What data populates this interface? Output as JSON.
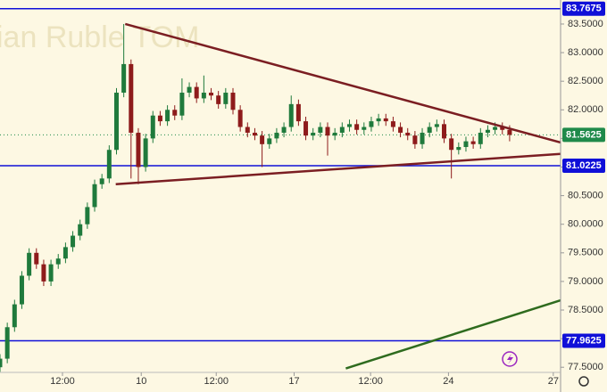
{
  "chart_data": {
    "type": "candlestick",
    "title": "ian Ruble TOM",
    "x": [
      0,
      1,
      2,
      3,
      4,
      5,
      6,
      7,
      8,
      9,
      10,
      11,
      12,
      13,
      14,
      15,
      16,
      17,
      18,
      19,
      20,
      21,
      22,
      23,
      24,
      25,
      26,
      27,
      28,
      29,
      30,
      31,
      32,
      33,
      34,
      35,
      36,
      37,
      38,
      39,
      40,
      41,
      42,
      43,
      44,
      45,
      46,
      47,
      48,
      49,
      50,
      51,
      52,
      53,
      54,
      55,
      56,
      57,
      58,
      59,
      60,
      61,
      62,
      63,
      64,
      65,
      66,
      67,
      68,
      69,
      70
    ],
    "open": [
      77.5,
      77.65,
      78.2,
      78.6,
      79.1,
      79.5,
      79.3,
      79.0,
      79.3,
      79.4,
      79.6,
      79.8,
      80.0,
      80.3,
      80.7,
      80.8,
      81.3,
      82.3,
      82.8,
      81.6,
      81.0,
      81.5,
      81.9,
      81.8,
      82.0,
      81.9,
      82.3,
      82.4,
      82.2,
      82.3,
      82.25,
      82.1,
      82.3,
      82.0,
      81.7,
      81.6,
      81.55,
      81.4,
      81.5,
      81.6,
      81.7,
      82.1,
      81.8,
      81.55,
      81.6,
      81.7,
      81.55,
      81.6,
      81.7,
      81.75,
      81.65,
      81.7,
      81.8,
      81.85,
      81.8,
      81.7,
      81.6,
      81.55,
      81.4,
      81.6,
      81.7,
      81.75,
      81.5,
      81.3,
      81.35,
      81.45,
      81.4,
      81.6,
      81.65,
      81.7,
      81.65
    ],
    "high": [
      77.73,
      78.28,
      78.68,
      79.18,
      79.58,
      79.58,
      79.38,
      79.38,
      79.48,
      79.68,
      79.88,
      80.08,
      80.38,
      80.78,
      80.88,
      81.38,
      82.38,
      83.5,
      82.88,
      81.68,
      81.58,
      81.98,
      81.98,
      82.08,
      82.08,
      82.55,
      82.48,
      82.48,
      82.6,
      82.38,
      82.33,
      82.38,
      82.38,
      82.08,
      81.78,
      81.68,
      81.63,
      81.58,
      81.68,
      81.78,
      82.25,
      82.18,
      81.88,
      81.68,
      81.78,
      81.78,
      81.68,
      81.78,
      81.83,
      81.83,
      81.78,
      81.88,
      81.93,
      81.93,
      81.88,
      81.78,
      81.68,
      81.63,
      81.68,
      81.78,
      81.83,
      81.83,
      81.58,
      81.43,
      81.53,
      81.53,
      81.68,
      81.73,
      81.78,
      81.78,
      81.73
    ],
    "low": [
      77.42,
      77.57,
      78.12,
      78.52,
      79.02,
      79.22,
      78.92,
      78.92,
      79.22,
      79.32,
      79.52,
      79.72,
      79.92,
      80.22,
      80.62,
      80.72,
      81.22,
      82.22,
      80.8,
      80.7,
      80.92,
      81.42,
      81.72,
      81.72,
      81.82,
      81.82,
      82.22,
      82.12,
      82.12,
      82.17,
      82.02,
      82.02,
      81.92,
      81.62,
      81.52,
      81.47,
      81.0,
      81.32,
      81.42,
      81.52,
      81.62,
      81.72,
      81.47,
      81.47,
      81.52,
      81.2,
      81.47,
      81.52,
      81.62,
      81.57,
      81.57,
      81.62,
      81.72,
      81.72,
      81.62,
      81.52,
      81.47,
      81.32,
      81.32,
      81.52,
      81.62,
      81.42,
      80.8,
      81.22,
      81.27,
      81.32,
      81.32,
      81.52,
      81.57,
      81.57,
      81.45
    ],
    "close": [
      77.65,
      78.2,
      78.6,
      79.1,
      79.5,
      79.3,
      79.0,
      79.3,
      79.4,
      79.6,
      79.8,
      80.0,
      80.3,
      80.7,
      80.8,
      81.3,
      82.3,
      82.8,
      81.6,
      81.0,
      81.5,
      81.9,
      81.8,
      82.0,
      81.9,
      82.3,
      82.4,
      82.2,
      82.3,
      82.25,
      82.1,
      82.3,
      82.0,
      81.7,
      81.6,
      81.55,
      81.4,
      81.5,
      81.6,
      81.7,
      82.1,
      81.8,
      81.55,
      81.6,
      81.7,
      81.55,
      81.6,
      81.7,
      81.75,
      81.65,
      81.7,
      81.8,
      81.85,
      81.8,
      81.7,
      81.6,
      81.55,
      81.4,
      81.6,
      81.7,
      81.75,
      81.5,
      81.3,
      81.35,
      81.45,
      81.4,
      81.6,
      81.65,
      81.7,
      81.65,
      81.5625
    ],
    "up_color": "#1f7a3c",
    "down_color": "#8e1b1b",
    "xlim": [
      0,
      77
    ],
    "ylim": [
      77.41,
      83.92
    ],
    "xticks": [
      {
        "value": 8.58,
        "label": "12:00"
      },
      {
        "value": 19.4,
        "label": "10"
      },
      {
        "value": 29.7,
        "label": "12:00"
      },
      {
        "value": 40.4,
        "label": "17"
      },
      {
        "value": 50.9,
        "label": "12:00"
      },
      {
        "value": 61.6,
        "label": "24"
      },
      {
        "value": 76.0,
        "label": "27"
      }
    ],
    "yticks": [
      {
        "value": 77.5,
        "label": "77.5000"
      },
      {
        "value": 78.0,
        "label": "78.0000"
      },
      {
        "value": 78.5,
        "label": "78.5000"
      },
      {
        "value": 79.0,
        "label": "79.0000"
      },
      {
        "value": 79.5,
        "label": "79.5000"
      },
      {
        "value": 80.0,
        "label": "80.0000"
      },
      {
        "value": 80.5,
        "label": "80.5000"
      },
      {
        "value": 81.0,
        "label": "81.0000"
      },
      {
        "value": 81.5,
        "label": "81.5000"
      },
      {
        "value": 82.0,
        "label": "82.0000"
      },
      {
        "value": 82.5,
        "label": "82.5000"
      },
      {
        "value": 83.0,
        "label": "83.0000"
      },
      {
        "value": 83.5,
        "label": "83.5000"
      }
    ],
    "levels": [
      {
        "value": 83.7675,
        "color": "#1010d8"
      },
      {
        "value": 81.0225,
        "color": "#1010d8"
      },
      {
        "value": 77.9625,
        "color": "#1010d8"
      }
    ],
    "last_price": {
      "value": 81.5625,
      "color": "#1f8a4a"
    },
    "trendlines": [
      {
        "color": "#7b1e22",
        "points": [
          [
            17.2,
            83.5
          ],
          [
            77,
            81.43
          ]
        ]
      },
      {
        "color": "#7b1e22",
        "points": [
          [
            15.9,
            80.7
          ],
          [
            77,
            81.23
          ]
        ]
      },
      {
        "color": "#2e6b1e",
        "points": [
          [
            47.5,
            77.48
          ],
          [
            77,
            78.67
          ]
        ]
      }
    ]
  }
}
